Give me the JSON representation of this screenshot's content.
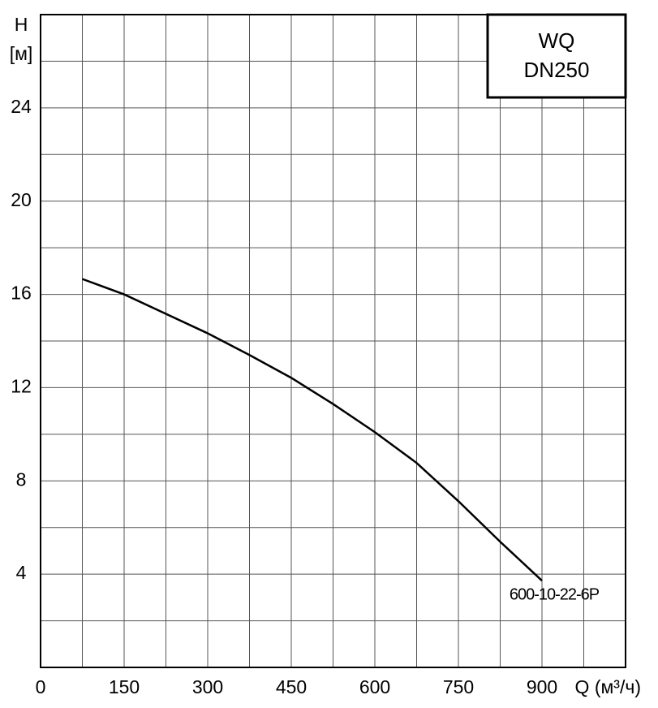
{
  "chart_data": {
    "type": "line",
    "title_lines": [
      "WQ",
      "DN250"
    ],
    "y_label_lines": [
      "H",
      "[м]"
    ],
    "x_label": "Q (м³/ч)",
    "x": [
      75,
      150,
      300,
      375,
      450,
      525,
      600,
      675,
      750,
      825,
      900
    ],
    "series": [
      {
        "name": "600-10-22-6P",
        "color": "#000000",
        "values": [
          16.66,
          16.0,
          14.33,
          13.4,
          12.42,
          11.3,
          10.09,
          8.77,
          7.13,
          5.39,
          3.72
        ]
      }
    ],
    "xlim": [
      0,
      1050
    ],
    "xticks": [
      0,
      150,
      300,
      450,
      600,
      750,
      900
    ],
    "ylim": [
      0,
      28
    ],
    "yticks": [
      4,
      8,
      12,
      16,
      20,
      24
    ],
    "xgrid": [
      75,
      150,
      225,
      300,
      375,
      450,
      525,
      600,
      675,
      750,
      825,
      900,
      975
    ],
    "ygrid": [
      2,
      4,
      6,
      8,
      10,
      12,
      14,
      16,
      18,
      20,
      22,
      24,
      26
    ],
    "grid": true
  }
}
